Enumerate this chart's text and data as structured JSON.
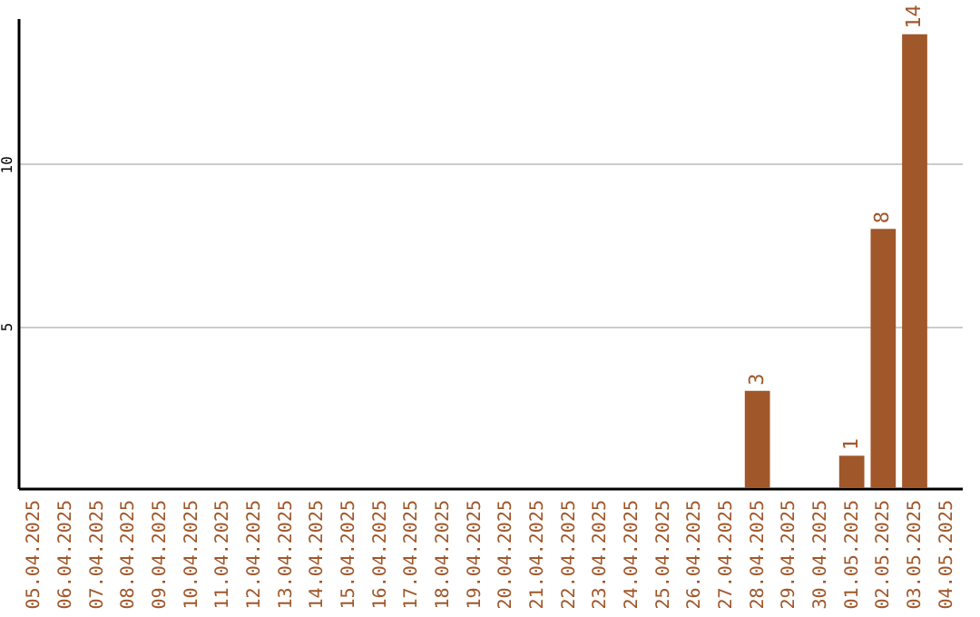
{
  "chart_data": {
    "type": "bar",
    "categories": [
      "05.04.2025",
      "06.04.2025",
      "07.04.2025",
      "08.04.2025",
      "09.04.2025",
      "10.04.2025",
      "11.04.2025",
      "12.04.2025",
      "13.04.2025",
      "14.04.2025",
      "15.04.2025",
      "16.04.2025",
      "17.04.2025",
      "18.04.2025",
      "19.04.2025",
      "20.04.2025",
      "21.04.2025",
      "22.04.2025",
      "23.04.2025",
      "24.04.2025",
      "25.04.2025",
      "26.04.2025",
      "27.04.2025",
      "28.04.2025",
      "29.04.2025",
      "30.04.2025",
      "01.05.2025",
      "02.05.2025",
      "03.05.2025",
      "04.05.2025"
    ],
    "values": [
      0,
      0,
      0,
      0,
      0,
      0,
      0,
      0,
      0,
      0,
      0,
      0,
      0,
      0,
      0,
      0,
      0,
      0,
      0,
      0,
      0,
      0,
      0,
      3,
      0,
      0,
      1,
      8,
      14,
      0
    ],
    "value_labels": [
      null,
      null,
      null,
      null,
      null,
      null,
      null,
      null,
      null,
      null,
      null,
      null,
      null,
      null,
      null,
      null,
      null,
      null,
      null,
      null,
      null,
      null,
      null,
      "3",
      null,
      null,
      "1",
      "8",
      "14",
      null
    ],
    "color": "#a0572a",
    "ylim": [
      0,
      14.5
    ],
    "yticks": [
      5,
      10
    ],
    "grid": "y"
  }
}
